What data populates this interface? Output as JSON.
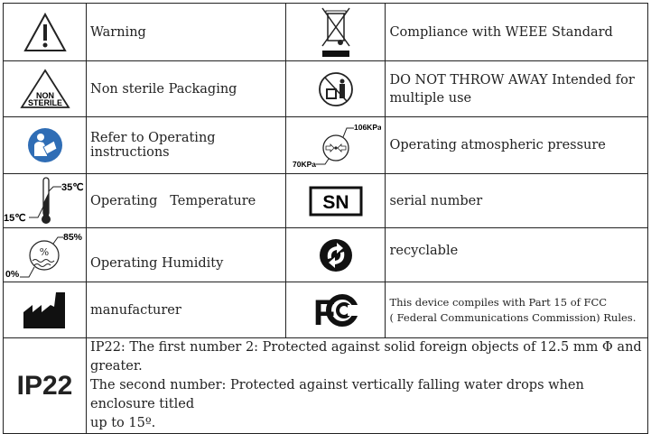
{
  "rows": [
    {
      "left": {
        "icon": "warning-icon",
        "label": "Warning"
      },
      "right": {
        "icon": "weee-bin-icon",
        "label": "Compliance with WEEE Standard"
      }
    },
    {
      "left": {
        "icon": "non-sterile-icon",
        "icon_text": [
          "NON",
          "STERILE"
        ],
        "label": "Non sterile Packaging"
      },
      "right": {
        "icon": "do-not-throw-away-icon",
        "label": "DO NOT THROW AWAY Intended for multiple use"
      }
    },
    {
      "left": {
        "icon": "read-instructions-icon",
        "label": "Refer to Operating instructions"
      },
      "right": {
        "icon": "pressure-icon",
        "icon_min": "70KPa",
        "icon_max": "106KPa",
        "label": "Operating atmospheric pressure"
      }
    },
    {
      "left": {
        "icon": "thermometer-icon",
        "icon_min": "15℃",
        "icon_max": "35℃",
        "label": "Operating   Temperature"
      },
      "right": {
        "icon": "serial-number-icon",
        "icon_text": "SN",
        "label": "serial number"
      }
    },
    {
      "left": {
        "icon": "humidity-icon",
        "icon_min": "0%",
        "icon_max": "85%",
        "label": "Operating Humidity"
      },
      "right": {
        "icon": "recyclable-icon",
        "label": "recyclable"
      }
    },
    {
      "left": {
        "icon": "manufacturer-icon",
        "label": "manufacturer"
      },
      "right": {
        "icon": "fcc-icon",
        "icon_text": "FC",
        "label_lines": [
          "This device compiles with Part 15 of FCC",
          "( Federal Communications Commission) Rules."
        ]
      }
    }
  ],
  "ip": {
    "icon_text": "IP22",
    "lines": [
      "IP22: The first number 2: Protected against solid foreign objects of 12.5 mm Φ and greater.",
      "The second number: Protected against vertically falling water drops when enclosure titled",
      "up to 15º."
    ]
  },
  "colors": {
    "instruction_blue": "#2f6db5",
    "line": "#222222"
  }
}
